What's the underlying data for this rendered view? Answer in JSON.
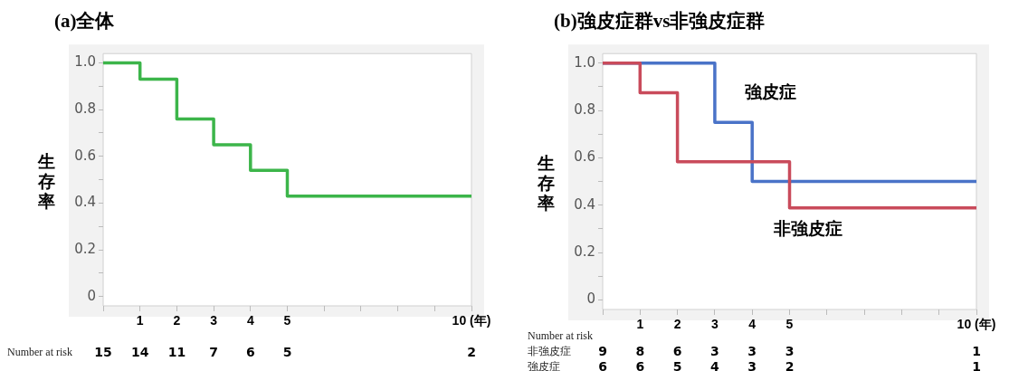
{
  "chart_data": [
    {
      "type": "step",
      "title": "(a)全体",
      "ylabel": "生存率",
      "series": [
        {
          "color": "#3cb54a",
          "x": [
            0,
            1,
            2,
            3,
            4,
            5,
            10
          ],
          "values": [
            1,
            0.93,
            0.76,
            0.65,
            0.54,
            0.43,
            0.43
          ]
        }
      ],
      "xlim": [
        0,
        10
      ],
      "xticks": [
        {
          "value": 0,
          "label": null
        },
        1,
        2,
        3,
        4,
        5,
        {
          "value": 6,
          "label": null
        },
        {
          "value": 7,
          "label": null
        },
        {
          "value": 8,
          "label": null
        },
        {
          "value": 9,
          "label": null
        },
        {
          "value": 10,
          "label": "10 (年)"
        }
      ],
      "ylim": [
        -0.04,
        1.04
      ],
      "yticks": [
        0,
        {
          "value": 0.1,
          "label": null
        },
        0.2,
        {
          "value": 0.3,
          "label": null
        },
        0.4,
        {
          "value": 0.5,
          "label": null
        },
        0.6,
        {
          "value": 0.7,
          "label": null
        },
        0.8,
        {
          "value": 0.9,
          "label": null
        },
        {
          "value": 1,
          "label": "1.0"
        }
      ],
      "grid": false,
      "legend": false,
      "annotations": [
        "Number at risk 15 14 11 7 6 5 2"
      ]
    },
    {
      "type": "step",
      "title": "(b)強皮症群vs非強皮症群",
      "ylabel": "生存率",
      "series": [
        {
          "name": "非強皮症",
          "color": "#c94b5b",
          "x": [
            0,
            1,
            2,
            5,
            10
          ],
          "values": [
            1,
            0.875,
            0.583,
            0.389,
            0.389
          ]
        },
        {
          "name": "強皮症",
          "color": "#4a73c8",
          "x": [
            0,
            3,
            4,
            10
          ],
          "values": [
            1,
            0.75,
            0.5,
            0.5
          ]
        }
      ],
      "xlim": [
        0,
        10
      ],
      "xticks": [
        {
          "value": 0,
          "label": null
        },
        1,
        2,
        3,
        4,
        5,
        {
          "value": 6,
          "label": null
        },
        {
          "value": 7,
          "label": null
        },
        {
          "value": 8,
          "label": null
        },
        {
          "value": 9,
          "label": null
        },
        {
          "value": 10,
          "label": "10 (年)"
        }
      ],
      "ylim": [
        -0.04,
        1.04
      ],
      "yticks": [
        0,
        {
          "value": 0.1,
          "label": null
        },
        0.2,
        {
          "value": 0.3,
          "label": null
        },
        0.4,
        {
          "value": 0.5,
          "label": null
        },
        0.6,
        {
          "value": 0.7,
          "label": null
        },
        0.8,
        {
          "value": 0.9,
          "label": null
        },
        {
          "value": 1,
          "label": "1.0"
        }
      ],
      "grid": false,
      "legend": false,
      "annotations": [
        "Number at risk",
        "非強皮症 9 8 6 3 3 3 1",
        "強皮症 6 6 5 4 3 2 1"
      ]
    }
  ]
}
